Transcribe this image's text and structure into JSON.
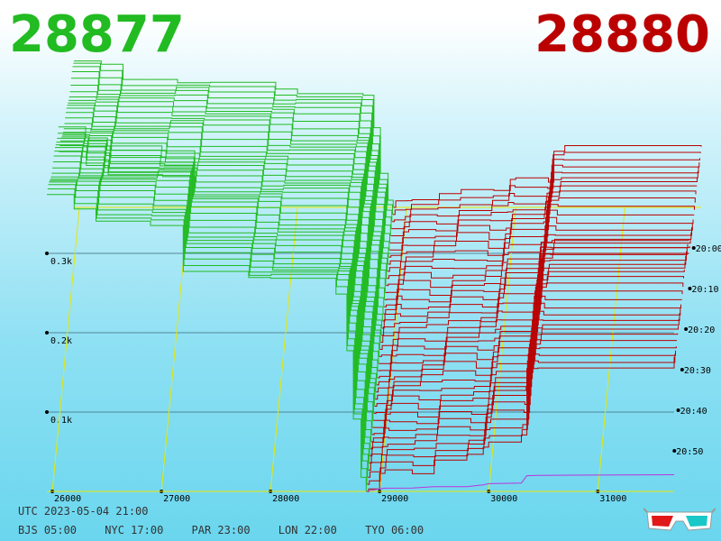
{
  "bid_price": "28877",
  "ask_price": "28880",
  "colors": {
    "bid": "#22bb22",
    "ask": "#bb0000",
    "grid": "#e8e800",
    "baseline": "#bb33dd"
  },
  "utc_line": "UTC 2023-05-04 21:00",
  "cities": [
    {
      "label": "BJS 05:00"
    },
    {
      "label": "NYC 17:00"
    },
    {
      "label": "PAR 23:00"
    },
    {
      "label": "LON 22:00"
    },
    {
      "label": "TYO 06:00"
    }
  ],
  "glasses_icon": "3d-glasses-icon",
  "chart_data": {
    "type": "area",
    "x_ticks": [
      "26000",
      "27000",
      "28000",
      "29000",
      "30000",
      "31000"
    ],
    "x_tick_values": [
      26000,
      27000,
      28000,
      29000,
      30000,
      31000
    ],
    "xlim": [
      25950,
      31700
    ],
    "y_ticks": [
      "0.1k",
      "0.2k",
      "0.3k"
    ],
    "y_tick_values": [
      100,
      200,
      300
    ],
    "ylim": [
      0,
      360
    ],
    "time_ticks": [
      "20:00",
      "20:10",
      "20:20",
      "20:30",
      "20:40",
      "20:50"
    ],
    "time_tick_minutes": [
      0,
      10,
      20,
      30,
      40,
      50
    ],
    "time_range_minutes": [
      -10,
      60
    ],
    "slices": 40,
    "series": [
      {
        "side": "bid",
        "x": [
          25950,
          26200,
          26400,
          26900,
          27200,
          27800,
          28000,
          28600,
          28700,
          28760,
          28830,
          28877
        ],
        "values": [
          330,
          318,
          300,
          295,
          283,
          270,
          262,
          248,
          180,
          90,
          20,
          0
        ]
      },
      {
        "side": "ask",
        "x": [
          28880,
          28900,
          29000,
          29050,
          29300,
          29500,
          29800,
          29950,
          30000,
          30300,
          30350,
          30450,
          31700
        ],
        "values": [
          0,
          5,
          22,
          27,
          28,
          40,
          40,
          55,
          65,
          70,
          132,
          135,
          140
        ]
      }
    ]
  }
}
